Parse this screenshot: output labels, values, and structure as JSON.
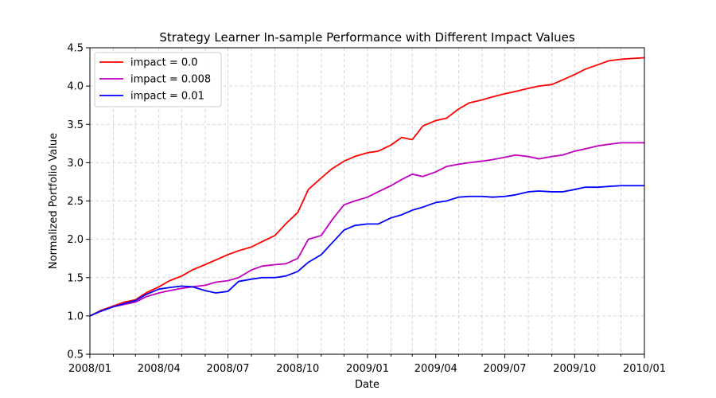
{
  "chart_data": {
    "type": "line",
    "title": "Strategy Learner In-sample Performance with Different Impact Values",
    "xlabel": "Date",
    "ylabel": "Normalized Portfolio Value",
    "xlim": [
      "2008-01-01",
      "2010-01-01"
    ],
    "ylim": [
      0.5,
      4.5
    ],
    "x_ticks": [
      {
        "date": "2008-01-01",
        "label": "2008/01"
      },
      {
        "date": "2008-04-01",
        "label": "2008/04"
      },
      {
        "date": "2008-07-01",
        "label": "2008/07"
      },
      {
        "date": "2008-10-01",
        "label": "2008/10"
      },
      {
        "date": "2009-01-01",
        "label": "2009/01"
      },
      {
        "date": "2009-04-01",
        "label": "2009/04"
      },
      {
        "date": "2009-07-01",
        "label": "2009/07"
      },
      {
        "date": "2009-10-01",
        "label": "2009/10"
      },
      {
        "date": "2010-01-01",
        "label": "2010/01"
      }
    ],
    "x_minor_ticks": [
      "2008-02-01",
      "2008-03-01",
      "2008-05-01",
      "2008-06-01",
      "2008-08-01",
      "2008-09-01",
      "2008-11-01",
      "2008-12-01",
      "2009-02-01",
      "2009-03-01",
      "2009-05-01",
      "2009-06-01",
      "2009-08-01",
      "2009-09-01",
      "2009-11-01",
      "2009-12-01"
    ],
    "y_ticks": [
      0.5,
      1.0,
      1.5,
      2.0,
      2.5,
      3.0,
      3.5,
      4.0,
      4.5
    ],
    "y_tick_labels": [
      "0.5",
      "1.0",
      "1.5",
      "2.0",
      "2.5",
      "3.0",
      "3.5",
      "4.0",
      "4.5"
    ],
    "grid": true,
    "legend_position": "top-left",
    "series": [
      {
        "name": "impact = 0.0",
        "color": "#ff0000",
        "x": [
          "2008-01-01",
          "2008-01-15",
          "2008-02-01",
          "2008-02-15",
          "2008-03-01",
          "2008-03-15",
          "2008-04-01",
          "2008-04-15",
          "2008-05-01",
          "2008-05-15",
          "2008-06-01",
          "2008-06-15",
          "2008-07-01",
          "2008-07-15",
          "2008-08-01",
          "2008-08-15",
          "2008-09-01",
          "2008-09-15",
          "2008-10-01",
          "2008-10-15",
          "2008-11-01",
          "2008-11-15",
          "2008-12-01",
          "2008-12-15",
          "2009-01-01",
          "2009-01-15",
          "2009-02-01",
          "2009-02-15",
          "2009-03-01",
          "2009-03-15",
          "2009-04-01",
          "2009-04-15",
          "2009-05-01",
          "2009-05-15",
          "2009-06-01",
          "2009-06-15",
          "2009-07-01",
          "2009-07-15",
          "2009-08-01",
          "2009-08-15",
          "2009-09-01",
          "2009-09-15",
          "2009-10-01",
          "2009-10-15",
          "2009-11-01",
          "2009-11-15",
          "2009-12-01",
          "2009-12-15",
          "2010-01-01"
        ],
        "values": [
          1.0,
          1.07,
          1.13,
          1.18,
          1.21,
          1.3,
          1.38,
          1.46,
          1.52,
          1.6,
          1.67,
          1.73,
          1.8,
          1.85,
          1.9,
          1.97,
          2.05,
          2.2,
          2.35,
          2.65,
          2.8,
          2.92,
          3.02,
          3.08,
          3.13,
          3.15,
          3.23,
          3.33,
          3.3,
          3.48,
          3.55,
          3.58,
          3.7,
          3.78,
          3.82,
          3.86,
          3.9,
          3.93,
          3.97,
          4.0,
          4.02,
          4.08,
          4.15,
          4.22,
          4.28,
          4.33,
          4.35,
          4.36,
          4.37
        ]
      },
      {
        "name": "impact = 0.008",
        "color": "#bf00bf",
        "x": [
          "2008-01-01",
          "2008-01-15",
          "2008-02-01",
          "2008-02-15",
          "2008-03-01",
          "2008-03-15",
          "2008-04-01",
          "2008-04-15",
          "2008-05-01",
          "2008-05-15",
          "2008-06-01",
          "2008-06-15",
          "2008-07-01",
          "2008-07-15",
          "2008-08-01",
          "2008-08-15",
          "2008-09-01",
          "2008-09-15",
          "2008-10-01",
          "2008-10-15",
          "2008-11-01",
          "2008-11-15",
          "2008-12-01",
          "2008-12-15",
          "2009-01-01",
          "2009-01-15",
          "2009-02-01",
          "2009-02-15",
          "2009-03-01",
          "2009-03-15",
          "2009-04-01",
          "2009-04-15",
          "2009-05-01",
          "2009-05-15",
          "2009-06-01",
          "2009-06-15",
          "2009-07-01",
          "2009-07-15",
          "2009-08-01",
          "2009-08-15",
          "2009-09-01",
          "2009-09-15",
          "2009-10-01",
          "2009-10-15",
          "2009-11-01",
          "2009-11-15",
          "2009-12-01",
          "2009-12-15",
          "2010-01-01"
        ],
        "values": [
          1.0,
          1.06,
          1.12,
          1.15,
          1.18,
          1.25,
          1.3,
          1.33,
          1.36,
          1.38,
          1.4,
          1.44,
          1.46,
          1.5,
          1.6,
          1.65,
          1.67,
          1.68,
          1.75,
          2.0,
          2.05,
          2.25,
          2.45,
          2.5,
          2.55,
          2.62,
          2.7,
          2.78,
          2.85,
          2.82,
          2.88,
          2.95,
          2.98,
          3.0,
          3.02,
          3.04,
          3.07,
          3.1,
          3.08,
          3.05,
          3.08,
          3.1,
          3.15,
          3.18,
          3.22,
          3.24,
          3.26,
          3.26,
          3.26
        ]
      },
      {
        "name": "impact = 0.01",
        "color": "#0000ff",
        "x": [
          "2008-01-01",
          "2008-01-15",
          "2008-02-01",
          "2008-02-15",
          "2008-03-01",
          "2008-03-15",
          "2008-04-01",
          "2008-04-15",
          "2008-05-01",
          "2008-05-15",
          "2008-06-01",
          "2008-06-15",
          "2008-07-01",
          "2008-07-15",
          "2008-08-01",
          "2008-08-15",
          "2008-09-01",
          "2008-09-15",
          "2008-10-01",
          "2008-10-15",
          "2008-11-01",
          "2008-11-15",
          "2008-12-01",
          "2008-12-15",
          "2009-01-01",
          "2009-01-15",
          "2009-02-01",
          "2009-02-15",
          "2009-03-01",
          "2009-03-15",
          "2009-04-01",
          "2009-04-15",
          "2009-05-01",
          "2009-05-15",
          "2009-06-01",
          "2009-06-15",
          "2009-07-01",
          "2009-07-15",
          "2009-08-01",
          "2009-08-15",
          "2009-09-01",
          "2009-09-15",
          "2009-10-01",
          "2009-10-15",
          "2009-11-01",
          "2009-11-15",
          "2009-12-01",
          "2009-12-15",
          "2010-01-01"
        ],
        "values": [
          1.0,
          1.06,
          1.12,
          1.16,
          1.2,
          1.28,
          1.35,
          1.37,
          1.39,
          1.38,
          1.33,
          1.3,
          1.32,
          1.45,
          1.48,
          1.5,
          1.5,
          1.52,
          1.58,
          1.7,
          1.8,
          1.95,
          2.12,
          2.18,
          2.2,
          2.2,
          2.28,
          2.32,
          2.38,
          2.42,
          2.48,
          2.5,
          2.55,
          2.56,
          2.56,
          2.55,
          2.56,
          2.58,
          2.62,
          2.63,
          2.62,
          2.62,
          2.65,
          2.68,
          2.68,
          2.69,
          2.7,
          2.7,
          2.7
        ]
      }
    ]
  }
}
